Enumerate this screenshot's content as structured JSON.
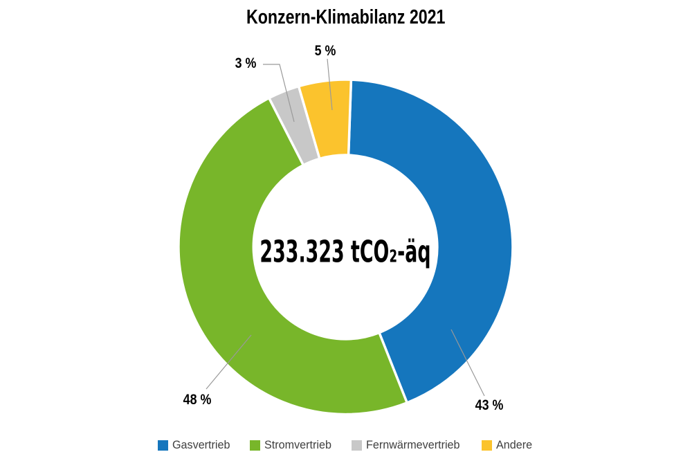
{
  "chart_data": {
    "type": "pie",
    "subtype": "donut",
    "title": "Konzern-Klimabilanz 2021",
    "center_label": "233.323 tCO₂-äq",
    "categories": [
      "Gasvertrieb",
      "Stromvertrieb",
      "Fernwärmevertrieb",
      "Andere"
    ],
    "values": [
      43,
      48,
      3,
      5
    ],
    "value_unit": "%",
    "slice_labels": [
      "43 %",
      "48 %",
      "3 %",
      "5 %"
    ],
    "colors": [
      "#1576BD",
      "#78B62A",
      "#C8C8C8",
      "#FBC32D"
    ],
    "donut_hole_ratio": 0.55,
    "start_angle_deg": 2,
    "direction": "clockwise",
    "legend_position": "bottom",
    "leader_line_color": "#999999",
    "title_color": "#000000",
    "label_color": "#000000",
    "legend_text_color": "#404040",
    "background": "#FFFFFF"
  }
}
